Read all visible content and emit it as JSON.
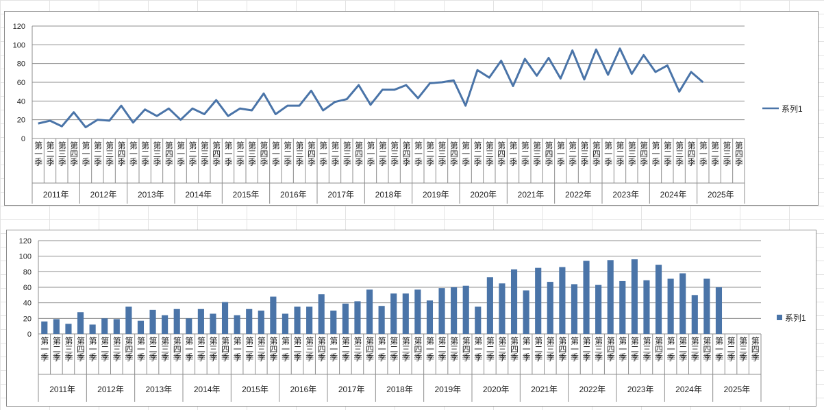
{
  "quarter_labels": [
    "第一季",
    "第二季",
    "第三季",
    "第四季"
  ],
  "colors": {
    "series": "#4a74a8",
    "grid": "#8c8c8c",
    "axis": "#8c8c8c"
  },
  "chart_data": [
    {
      "type": "line",
      "years": [
        "2011年",
        "2012年",
        "2013年",
        "2014年",
        "2015年",
        "2016年",
        "2017年",
        "2018年",
        "2019年",
        "2020年",
        "2021年",
        "2022年",
        "2023年",
        "2024年",
        "2025年"
      ],
      "series": [
        {
          "name": "系列1",
          "values": [
            16,
            19,
            13,
            28,
            12,
            20,
            19,
            35,
            17,
            31,
            24,
            32,
            20,
            32,
            26,
            41,
            24,
            32,
            30,
            48,
            26,
            35,
            35,
            51,
            30,
            39,
            42,
            57,
            36,
            52,
            52,
            57,
            43,
            59,
            60,
            62,
            35,
            73,
            65,
            83,
            56,
            85,
            67,
            86,
            64,
            94,
            63,
            95,
            68,
            96,
            69,
            89,
            71,
            78,
            50,
            71,
            60,
            null,
            null,
            null
          ]
        }
      ],
      "ylim": [
        0,
        120
      ],
      "yticks": [
        0,
        20,
        40,
        60,
        80,
        100,
        120
      ],
      "legend_position": "right",
      "grid": true
    },
    {
      "type": "bar",
      "years": [
        "2011年",
        "2012年",
        "2013年",
        "2014年",
        "2015年",
        "2016年",
        "2017年",
        "2018年",
        "2019年",
        "2020年",
        "2021年",
        "2022年",
        "2023年",
        "2024年",
        "2025年"
      ],
      "series": [
        {
          "name": "系列1",
          "values": [
            16,
            19,
            13,
            28,
            12,
            20,
            19,
            35,
            17,
            31,
            24,
            32,
            20,
            32,
            26,
            41,
            24,
            32,
            30,
            48,
            26,
            35,
            35,
            51,
            30,
            39,
            42,
            57,
            36,
            52,
            52,
            57,
            43,
            59,
            60,
            62,
            35,
            73,
            65,
            83,
            56,
            85,
            67,
            86,
            64,
            94,
            63,
            95,
            68,
            96,
            69,
            89,
            71,
            78,
            50,
            71,
            60,
            null,
            null,
            null
          ]
        }
      ],
      "ylim": [
        0,
        120
      ],
      "yticks": [
        0,
        20,
        40,
        60,
        80,
        100,
        120
      ],
      "legend_position": "right",
      "grid": true
    }
  ]
}
